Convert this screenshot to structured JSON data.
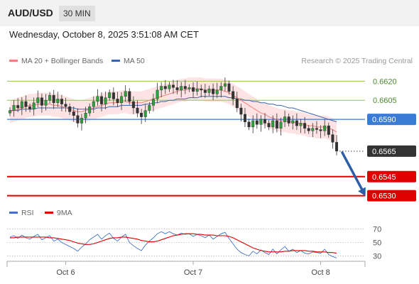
{
  "header": {
    "symbol": "AUD/USD",
    "timeframe": "30 MIN",
    "datetime": "Wednesday, October 8, 2025 3:51:08 AM CET"
  },
  "legend": {
    "ma20_label": "MA 20 + Bollinger Bands",
    "ma20_color": "#f08080",
    "band_color": "#fde3e3",
    "ma50_label": "MA 50",
    "ma50_color": "#3a66a8",
    "research": "Research © 2025 Trading Central"
  },
  "rsi_legend": {
    "rsi_label": "RSI",
    "rsi_color": "#4472c4",
    "ma9_label": "9MA",
    "ma9_color": "#e00000"
  },
  "chart_data": [
    {
      "type": "candlestick",
      "ylim": [
        0.6522,
        0.6628
      ],
      "x_labels": [
        {
          "label": "Oct 6",
          "index": 14
        },
        {
          "label": "Oct 7",
          "index": 46
        },
        {
          "label": "Oct 8",
          "index": 78
        }
      ],
      "levels": [
        {
          "label": "0.6620",
          "value": 0.662,
          "kind": "resistance",
          "color": "#8fc45a"
        },
        {
          "label": "0.6605",
          "value": 0.6605,
          "kind": "resistance",
          "color": "#8fc45a"
        },
        {
          "label": "0.6590",
          "value": 0.659,
          "kind": "pivot",
          "color": "#3a7bd5"
        },
        {
          "label": "0.6565",
          "value": 0.6565,
          "kind": "last",
          "color": "#333333"
        },
        {
          "label": "0.6545",
          "value": 0.6545,
          "kind": "target",
          "color": "#e00000"
        },
        {
          "label": "0.6530",
          "value": 0.653,
          "kind": "target",
          "color": "#e00000"
        }
      ],
      "close": [
        0.6597,
        0.6601,
        0.6599,
        0.6604,
        0.66,
        0.6598,
        0.6603,
        0.6607,
        0.6601,
        0.6605,
        0.6609,
        0.6603,
        0.6606,
        0.6602,
        0.66,
        0.6596,
        0.6593,
        0.6587,
        0.6591,
        0.6595,
        0.66,
        0.6604,
        0.6608,
        0.6602,
        0.6607,
        0.6611,
        0.6606,
        0.6603,
        0.6608,
        0.6612,
        0.6604,
        0.6599,
        0.6595,
        0.6592,
        0.6597,
        0.6601,
        0.6606,
        0.6613,
        0.6616,
        0.6614,
        0.6617,
        0.6615,
        0.6613,
        0.6616,
        0.6614,
        0.6615,
        0.6612,
        0.6614,
        0.6613,
        0.6611,
        0.6614,
        0.661,
        0.6613,
        0.6616,
        0.6618,
        0.6612,
        0.6606,
        0.6599,
        0.6594,
        0.6588,
        0.6584,
        0.6589,
        0.6586,
        0.659,
        0.6587,
        0.6584,
        0.6589,
        0.6583,
        0.6588,
        0.6592,
        0.6587,
        0.6589,
        0.6585,
        0.6587,
        0.6583,
        0.6581,
        0.6583,
        0.6582,
        0.6581,
        0.6585,
        0.6578,
        0.6572,
        0.6565
      ],
      "ma20": [
        0.6596,
        0.6597,
        0.6598,
        0.6599,
        0.66,
        0.6601,
        0.6601,
        0.6602,
        0.6602,
        0.6602,
        0.6602,
        0.6601,
        0.6601,
        0.66,
        0.6599,
        0.6598,
        0.6597,
        0.6596,
        0.6596,
        0.6597,
        0.6598,
        0.6599,
        0.66,
        0.6601,
        0.6602,
        0.6603,
        0.6603,
        0.6603,
        0.6604,
        0.6604,
        0.6603,
        0.6603,
        0.6603,
        0.6603,
        0.6604,
        0.6605,
        0.6606,
        0.6607,
        0.6608,
        0.6609,
        0.661,
        0.6611,
        0.6612,
        0.6613,
        0.6613,
        0.6614,
        0.6614,
        0.6614,
        0.6614,
        0.6613,
        0.6613,
        0.6613,
        0.6613,
        0.6613,
        0.6612,
        0.6611,
        0.6609,
        0.6607,
        0.6605,
        0.6603,
        0.6601,
        0.6599,
        0.6597,
        0.6595,
        0.6594,
        0.6592,
        0.6591,
        0.659,
        0.6589,
        0.6589,
        0.6588,
        0.6588,
        0.6587,
        0.6587,
        0.6586,
        0.6585,
        0.6585,
        0.6584,
        0.6584,
        0.6584,
        0.6583,
        0.6582,
        0.658
      ],
      "ma50": [
        0.6597,
        0.6597,
        0.6597,
        0.6598,
        0.6598,
        0.6598,
        0.6598,
        0.6599,
        0.6599,
        0.6599,
        0.6599,
        0.6599,
        0.6599,
        0.6599,
        0.6599,
        0.6599,
        0.6599,
        0.6598,
        0.6598,
        0.6598,
        0.6598,
        0.6598,
        0.6599,
        0.6599,
        0.6599,
        0.66,
        0.66,
        0.66,
        0.6601,
        0.6601,
        0.6601,
        0.6601,
        0.6601,
        0.6601,
        0.6602,
        0.6602,
        0.6603,
        0.6603,
        0.6604,
        0.6604,
        0.6605,
        0.6605,
        0.6606,
        0.6606,
        0.6606,
        0.6607,
        0.6607,
        0.6607,
        0.6608,
        0.6608,
        0.6608,
        0.6608,
        0.6608,
        0.6608,
        0.6608,
        0.6607,
        0.6607,
        0.6606,
        0.6606,
        0.6605,
        0.6605,
        0.6604,
        0.6604,
        0.6603,
        0.6603,
        0.6602,
        0.6602,
        0.6601,
        0.6601,
        0.66,
        0.6599,
        0.6599,
        0.6598,
        0.6597,
        0.6596,
        0.6595,
        0.6594,
        0.6593,
        0.6592,
        0.6591,
        0.659,
        0.6589,
        0.6588
      ],
      "bb_width": 0.0009,
      "forecast": {
        "from_value": 0.6565,
        "to_value": 0.653,
        "bars_ahead": 6,
        "color": "#2d5fa6"
      }
    },
    {
      "type": "line",
      "ylim": [
        22,
        78
      ],
      "y_ticks": [
        30,
        50,
        70
      ],
      "series": [
        {
          "name": "RSI",
          "values": [
            58,
            60,
            56,
            61,
            57,
            55,
            59,
            62,
            54,
            57,
            60,
            52,
            55,
            50,
            47,
            44,
            41,
            37,
            43,
            48,
            54,
            58,
            62,
            55,
            60,
            64,
            56,
            52,
            58,
            62,
            50,
            45,
            41,
            38,
            46,
            52,
            57,
            63,
            66,
            63,
            66,
            63,
            61,
            64,
            62,
            63,
            59,
            62,
            60,
            57,
            61,
            55,
            59,
            63,
            65,
            56,
            48,
            40,
            35,
            32,
            30,
            37,
            33,
            39,
            35,
            32,
            40,
            33,
            39,
            44,
            37,
            40,
            35,
            38,
            34,
            33,
            36,
            35,
            34,
            40,
            32,
            29,
            27
          ]
        },
        {
          "name": "9MA",
          "values": [
            57,
            57,
            58,
            58,
            58,
            58,
            58,
            58,
            58,
            58,
            57,
            57,
            56,
            55,
            54,
            53,
            51,
            49,
            48,
            47,
            47,
            48,
            50,
            52,
            54,
            56,
            57,
            57,
            58,
            58,
            57,
            56,
            55,
            53,
            52,
            51,
            51,
            52,
            54,
            56,
            58,
            60,
            61,
            62,
            63,
            63,
            63,
            62,
            62,
            61,
            61,
            61,
            60,
            60,
            60,
            59,
            57,
            54,
            51,
            48,
            45,
            42,
            40,
            38,
            37,
            36,
            36,
            36,
            36,
            37,
            37,
            38,
            38,
            38,
            38,
            37,
            37,
            36,
            36,
            36,
            35,
            35,
            34
          ]
        }
      ]
    }
  ]
}
